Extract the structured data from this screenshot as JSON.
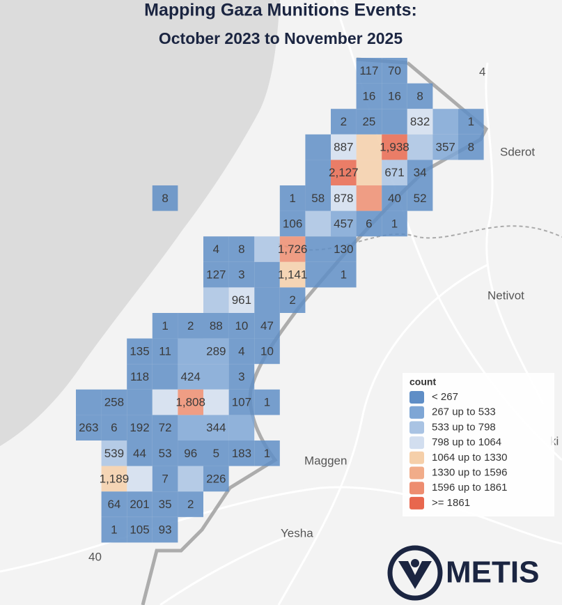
{
  "header": {
    "title": "Mapping Gaza Munitions Events:",
    "subtitle": "October 2023 to November 2025"
  },
  "legend": {
    "title": "count",
    "breaks": [
      267,
      533,
      798,
      1064,
      1330,
      1596,
      1861
    ],
    "items": [
      {
        "label": "< 267",
        "color": "#5f8ec6"
      },
      {
        "label": "267 up to 533",
        "color": "#7ea6d5"
      },
      {
        "label": "533 up to 798",
        "color": "#a9c3e3"
      },
      {
        "label": "798 up to 1064",
        "color": "#d2deef"
      },
      {
        "label": "1064 up to 1330",
        "color": "#f5cfa9"
      },
      {
        "label": "1330 up to 1596",
        "color": "#f1ac89"
      },
      {
        "label": "1596 up to 1861",
        "color": "#ed8d70"
      },
      {
        "label": ">= 1861",
        "color": "#e8674e"
      }
    ]
  },
  "grid": {
    "rows": [
      [
        null,
        null,
        null,
        null,
        null,
        null,
        null,
        null,
        null,
        null,
        null,
        117,
        70,
        null,
        null,
        null
      ],
      [
        null,
        null,
        null,
        null,
        null,
        null,
        null,
        null,
        null,
        null,
        null,
        16,
        16,
        8,
        null,
        null
      ],
      [
        null,
        null,
        null,
        null,
        null,
        null,
        null,
        null,
        null,
        null,
        2,
        25,
        null,
        832,
        null,
        1
      ],
      [
        null,
        null,
        null,
        null,
        null,
        null,
        null,
        null,
        null,
        null,
        887,
        null,
        {
          "value": 1938,
          "label": "1,938"
        },
        null,
        357,
        8
      ],
      [
        null,
        null,
        null,
        null,
        null,
        null,
        null,
        null,
        null,
        null,
        {
          "value": 2127,
          "label": "2,127"
        },
        null,
        671,
        34,
        null,
        null
      ],
      [
        null,
        null,
        null,
        8,
        null,
        null,
        null,
        null,
        1,
        58,
        878,
        null,
        40,
        52,
        null,
        null
      ],
      [
        null,
        null,
        null,
        null,
        null,
        null,
        null,
        null,
        106,
        null,
        457,
        6,
        1,
        null,
        null,
        null
      ],
      [
        null,
        null,
        null,
        null,
        null,
        4,
        8,
        null,
        {
          "value": 1726,
          "label": "1,726"
        },
        null,
        130,
        null,
        null,
        null,
        null,
        null
      ],
      [
        null,
        null,
        null,
        null,
        null,
        127,
        3,
        null,
        {
          "value": 1141,
          "label": "1,141"
        },
        null,
        1,
        null,
        null,
        null,
        null,
        null
      ],
      [
        null,
        null,
        null,
        null,
        null,
        null,
        961,
        null,
        2,
        null,
        null,
        null,
        null,
        null,
        null,
        null
      ],
      [
        null,
        null,
        null,
        1,
        2,
        88,
        10,
        47,
        null,
        null,
        null,
        null,
        null,
        null,
        null,
        null
      ],
      [
        null,
        null,
        135,
        11,
        null,
        289,
        4,
        10,
        null,
        null,
        null,
        null,
        null,
        null,
        null,
        null
      ],
      [
        null,
        null,
        118,
        null,
        424,
        null,
        3,
        null,
        null,
        null,
        null,
        null,
        null,
        null,
        null,
        null
      ],
      [
        null,
        258,
        null,
        null,
        {
          "value": 1808,
          "label": "1,808"
        },
        null,
        107,
        1,
        null,
        null,
        null,
        null,
        null,
        null,
        null,
        null
      ],
      [
        263,
        6,
        192,
        72,
        null,
        344,
        null,
        null,
        null,
        null,
        null,
        null,
        null,
        null,
        null,
        null
      ],
      [
        null,
        539,
        44,
        53,
        96,
        5,
        183,
        1,
        null,
        null,
        null,
        null,
        null,
        null,
        null,
        null
      ],
      [
        null,
        {
          "value": 1189,
          "label": "1,189"
        },
        null,
        7,
        null,
        226,
        null,
        null,
        null,
        null,
        null,
        null,
        null,
        null,
        null,
        null
      ],
      [
        null,
        64,
        201,
        35,
        2,
        null,
        null,
        null,
        null,
        null,
        null,
        null,
        null,
        null,
        null,
        null
      ],
      [
        null,
        1,
        105,
        93,
        null,
        null,
        null,
        null,
        null,
        null,
        null,
        null,
        null,
        null,
        null,
        null
      ]
    ]
  },
  "places": {
    "road_4": "4",
    "sderot": "Sderot",
    "netivot": "Netivot",
    "maggen": "Maggen",
    "yesha": "Yesha",
    "road_40": "40",
    "edge": "ki"
  },
  "logo": {
    "text": "METIS"
  }
}
